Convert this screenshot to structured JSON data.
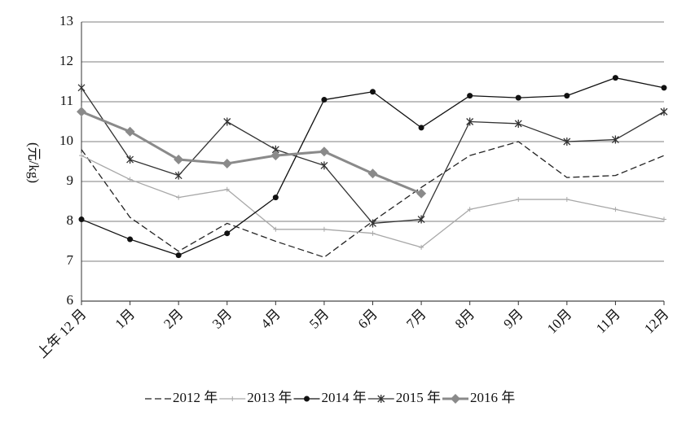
{
  "chart_data": {
    "type": "line",
    "y_label": "(元/kg)",
    "categories": [
      "上年 12 月",
      "1月",
      "2月",
      "3月",
      "4月",
      "5月",
      "6月",
      "7月",
      "8月",
      "9月",
      "10月",
      "11月",
      "12月"
    ],
    "series": [
      {
        "name": "2012 年",
        "color": "#222222",
        "dash": "8,4",
        "marker": "none",
        "width": 1.3,
        "values": [
          9.8,
          8.1,
          7.25,
          7.95,
          7.5,
          7.1,
          8.0,
          8.85,
          9.65,
          10.0,
          9.1,
          9.15,
          9.65
        ]
      },
      {
        "name": "2013 年",
        "color": "#a8a8a8",
        "dash": "",
        "marker": "plus",
        "width": 1.3,
        "values": [
          9.65,
          9.05,
          8.6,
          8.8,
          7.8,
          7.8,
          7.7,
          7.35,
          8.3,
          8.55,
          8.55,
          8.3,
          8.05
        ]
      },
      {
        "name": "2014 年",
        "color": "#111111",
        "dash": "",
        "marker": "dot",
        "width": 1.3,
        "values": [
          8.05,
          7.55,
          7.15,
          7.7,
          8.6,
          11.05,
          11.25,
          10.35,
          11.15,
          11.1,
          11.15,
          11.6,
          11.35
        ]
      },
      {
        "name": "2015 年",
        "color": "#333333",
        "dash": "",
        "marker": "star",
        "width": 1.3,
        "values": [
          11.35,
          9.55,
          9.15,
          10.5,
          9.8,
          9.4,
          7.95,
          8.05,
          10.5,
          10.45,
          10.0,
          10.05,
          10.75
        ]
      },
      {
        "name": "2016 年",
        "color": "#8a8a8a",
        "dash": "",
        "marker": "diamond",
        "width": 3,
        "values": [
          10.75,
          10.25,
          9.55,
          9.45,
          9.65,
          9.75,
          9.2,
          8.7,
          null,
          null,
          null,
          null,
          null
        ]
      }
    ],
    "ylim": [
      6,
      13
    ],
    "yticks": [
      6,
      7,
      8,
      9,
      10,
      11,
      12,
      13
    ],
    "grid": true,
    "legend": "bottom"
  }
}
